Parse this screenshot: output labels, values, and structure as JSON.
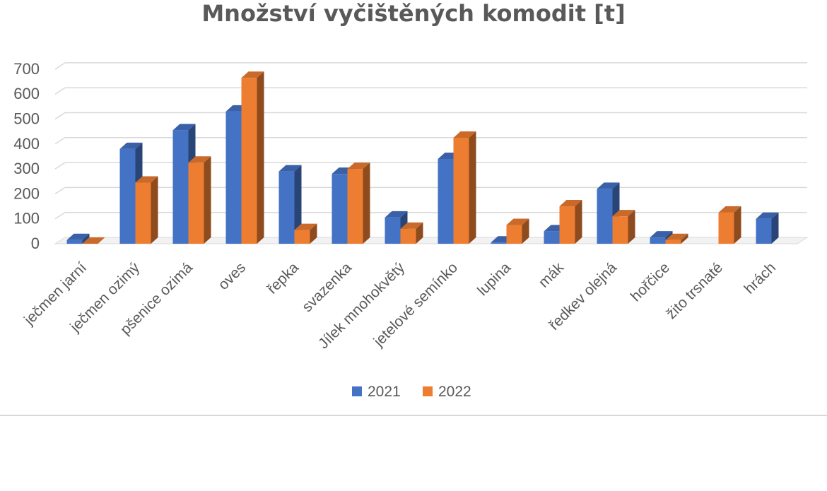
{
  "chart_data": {
    "type": "bar",
    "title": "Množství vyčištěných komodit [t]",
    "xlabel": "",
    "ylabel": "",
    "ylim": [
      0,
      700
    ],
    "yticks": [
      0,
      100,
      200,
      300,
      400,
      500,
      600,
      700
    ],
    "grid": true,
    "three_d": true,
    "legend_position": "bottom",
    "categories": [
      "ječmen jarní",
      "ječmen ozimý",
      "pšenice ozimá",
      "oves",
      "řepka",
      "svazenka",
      "Jílek mnohokvětý",
      "jetelové semínko",
      "lupina",
      "mák",
      "ředkev olejná",
      "hořčice",
      "žito trsnaté",
      "hrách"
    ],
    "series": [
      {
        "name": "2021",
        "color": "#4472C4",
        "values": [
          15,
          380,
          455,
          530,
          290,
          280,
          105,
          340,
          5,
          50,
          220,
          25,
          null,
          100
        ]
      },
      {
        "name": "2022",
        "color": "#ED7D31",
        "values": [
          0,
          245,
          325,
          665,
          55,
          300,
          60,
          425,
          75,
          150,
          110,
          15,
          125,
          null
        ]
      }
    ]
  }
}
